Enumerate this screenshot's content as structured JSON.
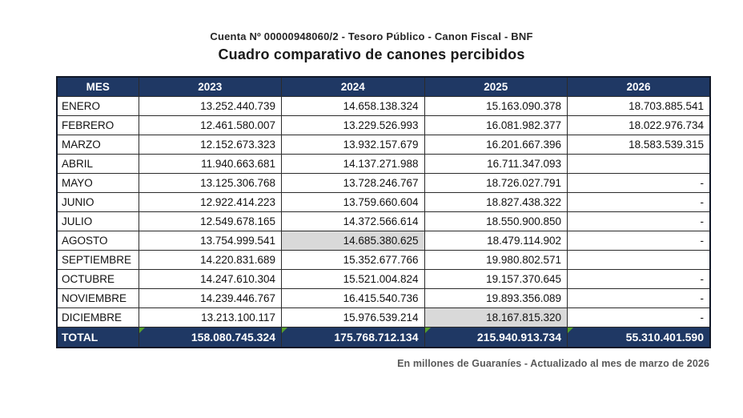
{
  "header": {
    "account_line": "Cuenta Nº 00000948060/2 - Tesoro Público - Canon Fiscal - BNF",
    "title": "Cuadro comparativo de canones percibidos"
  },
  "table": {
    "columns": [
      "MES",
      "2023",
      "2024",
      "2025",
      "2026"
    ],
    "rows": [
      {
        "mes": "ENERO",
        "values": [
          "13.252.440.739",
          "14.658.138.324",
          "15.163.090.378",
          "18.703.885.541"
        ]
      },
      {
        "mes": "FEBRERO",
        "values": [
          "12.461.580.007",
          "13.229.526.993",
          "16.081.982.377",
          "18.022.976.734"
        ]
      },
      {
        "mes": "MARZO",
        "values": [
          "12.152.673.323",
          "13.932.157.679",
          "16.201.667.396",
          "18.583.539.315"
        ]
      },
      {
        "mes": "ABRIL",
        "values": [
          "11.940.663.681",
          "14.137.271.988",
          "16.711.347.093",
          ""
        ]
      },
      {
        "mes": "MAYO",
        "values": [
          "13.125.306.768",
          "13.728.246.767",
          "18.726.027.791",
          "-"
        ]
      },
      {
        "mes": "JUNIO",
        "values": [
          "12.922.414.223",
          "13.759.660.604",
          "18.827.438.322",
          "-"
        ]
      },
      {
        "mes": "JULIO",
        "values": [
          "12.549.678.165",
          "14.372.566.614",
          "18.550.900.850",
          "-"
        ]
      },
      {
        "mes": "AGOSTO",
        "values": [
          "13.754.999.541",
          "14.685.380.625",
          "18.479.114.902",
          "-"
        ]
      },
      {
        "mes": "SEPTIEMBRE",
        "values": [
          "14.220.831.689",
          "15.352.677.766",
          "19.980.802.571",
          ""
        ]
      },
      {
        "mes": "OCTUBRE",
        "values": [
          "14.247.610.304",
          "15.521.004.824",
          "19.157.370.645",
          "-"
        ]
      },
      {
        "mes": "NOVIEMBRE",
        "values": [
          "14.239.446.767",
          "16.415.540.736",
          "19.893.356.089",
          "-"
        ]
      },
      {
        "mes": "DICIEMBRE",
        "values": [
          "13.213.100.117",
          "15.976.539.214",
          "18.167.815.320",
          "-"
        ]
      }
    ],
    "highlights": [
      [
        7,
        1
      ],
      [
        11,
        2
      ]
    ],
    "total": {
      "label": "TOTAL",
      "values": [
        "158.080.745.324",
        "175.768.712.134",
        "215.940.913.734",
        "55.310.401.590"
      ]
    }
  },
  "footer": {
    "note": "En millones de Guaraníes - Actualizado al mes de marzo de 2026"
  },
  "colors": {
    "header_bg": "#1F3864",
    "highlight_bg": "#D9D9D9",
    "flag_green": "#55A02E",
    "footnote_gray": "#595959"
  }
}
